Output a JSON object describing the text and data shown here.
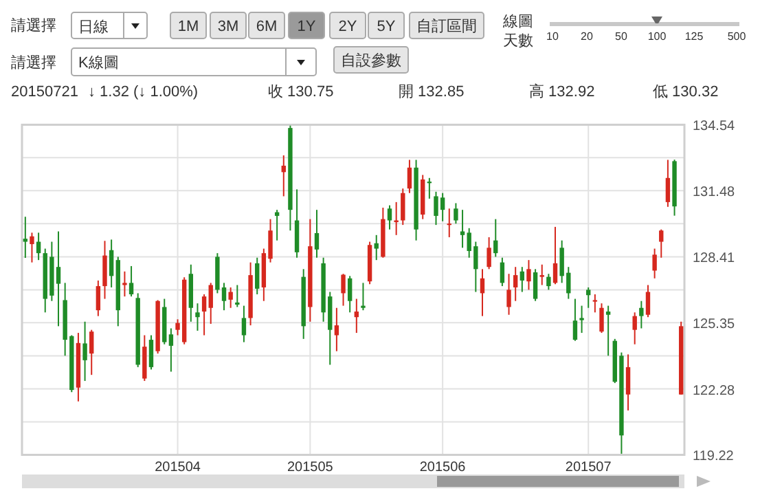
{
  "chart_data": {
    "type": "candlestick",
    "annotations": [
      "請選擇",
      "日線",
      "1M",
      "3M",
      "6M",
      "1Y",
      "2Y",
      "5Y",
      "自訂區間",
      "線圖",
      "天數",
      "10",
      "20",
      "50",
      "100",
      "125",
      "500",
      "請選擇",
      "K線圖",
      "自設參數",
      "20150721",
      "↓ 1.32 (↓ 1.00%)",
      "收 130.75",
      "開 132.85",
      "高 132.92",
      "低 130.32"
    ],
    "categories": [
      null,
      null,
      null,
      null,
      null,
      null,
      null,
      null,
      null,
      null,
      null,
      null,
      null,
      null,
      null,
      null,
      null,
      null,
      null,
      null,
      null,
      null,
      null,
      "201504",
      null,
      null,
      null,
      null,
      null,
      null,
      null,
      null,
      null,
      null,
      null,
      null,
      null,
      null,
      null,
      null,
      null,
      null,
      null,
      "201505",
      null,
      null,
      null,
      null,
      null,
      null,
      null,
      null,
      null,
      null,
      null,
      null,
      null,
      null,
      null,
      null,
      null,
      null,
      null,
      "201506",
      null,
      null,
      null,
      null,
      null,
      null,
      null,
      null,
      null,
      null,
      null,
      null,
      null,
      null,
      null,
      null,
      null,
      null,
      null,
      null,
      null,
      "201507",
      null,
      null,
      null,
      null,
      null,
      null,
      null,
      null,
      null,
      null,
      null,
      null,
      null,
      null
    ],
    "ohlc": [
      [
        129.25,
        130.27,
        128.36,
        129.11
      ],
      [
        129.0,
        129.53,
        128.15,
        129.36
      ],
      [
        129.11,
        129.53,
        128.26,
        128.58
      ],
      [
        128.58,
        128.79,
        125.83,
        126.46
      ],
      [
        128.41,
        129.11,
        126.36,
        126.61
      ],
      [
        127.94,
        129.59,
        125.19,
        127.16
      ],
      [
        126.4,
        127.2,
        123.82,
        124.56
      ],
      [
        124.73,
        124.77,
        122.13,
        122.23
      ],
      [
        122.34,
        124.88,
        121.7,
        124.41
      ],
      [
        124.39,
        125.4,
        122.65,
        123.61
      ],
      [
        123.92,
        125.02,
        122.93,
        124.94
      ],
      [
        125.93,
        127.31,
        125.66,
        127.05
      ],
      [
        127.05,
        129.15,
        126.46,
        128.47
      ],
      [
        128.72,
        129.21,
        126.99,
        127.52
      ],
      [
        128.26,
        128.41,
        125.19,
        125.93
      ],
      [
        127.1,
        127.73,
        126.57,
        127.2
      ],
      [
        127.2,
        127.98,
        126.57,
        126.67
      ],
      [
        126.5,
        126.72,
        123.29,
        123.4
      ],
      [
        122.76,
        124.77,
        122.65,
        124.24
      ],
      [
        124.56,
        124.77,
        123.18,
        123.29
      ],
      [
        124.03,
        126.4,
        123.92,
        126.36
      ],
      [
        126.08,
        126.46,
        124.35,
        124.45
      ],
      [
        124.81,
        125.09,
        123.08,
        124.28
      ],
      [
        125.02,
        125.51,
        124.77,
        125.34
      ],
      [
        124.45,
        127.46,
        124.35,
        127.35
      ],
      [
        127.62,
        128.05,
        125.4,
        126.04
      ],
      [
        125.83,
        126.25,
        124.98,
        125.61
      ],
      [
        125.87,
        126.67,
        124.77,
        126.57
      ],
      [
        126.04,
        127.2,
        125.3,
        127.1
      ],
      [
        128.41,
        128.58,
        126.72,
        126.88
      ],
      [
        126.99,
        127.2,
        125.93,
        126.36
      ],
      [
        126.42,
        126.99,
        126.04,
        126.78
      ],
      [
        126.29,
        127.1,
        126.08,
        126.19
      ],
      [
        125.57,
        126.14,
        124.45,
        124.77
      ],
      [
        125.57,
        128.15,
        125.23,
        127.56
      ],
      [
        128.11,
        128.37,
        126.67,
        126.93
      ],
      [
        126.99,
        128.79,
        126.36,
        128.58
      ],
      [
        128.32,
        130.16,
        128.15,
        129.63
      ],
      [
        130.48,
        130.59,
        129.17,
        130.31
      ],
      [
        132.34,
        133.12,
        131.22,
        132.64
      ],
      [
        134.39,
        134.5,
        129.63,
        130.59
      ],
      [
        130.1,
        131.54,
        128.37,
        128.62
      ],
      [
        127.48,
        127.84,
        124.6,
        125.19
      ],
      [
        126.08,
        130.16,
        125.4,
        128.9
      ],
      [
        129.51,
        130.59,
        128.37,
        128.75
      ],
      [
        128.11,
        128.37,
        125.4,
        125.83
      ],
      [
        126.57,
        126.78,
        123.4,
        125.02
      ],
      [
        124.77,
        126.04,
        124.03,
        125.23
      ],
      [
        126.72,
        127.62,
        126.14,
        127.58
      ],
      [
        127.41,
        127.52,
        125.83,
        126.36
      ],
      [
        125.61,
        126.46,
        124.88,
        125.87
      ],
      [
        126.14,
        127.2,
        125.93,
        126.04
      ],
      [
        127.27,
        129.11,
        127.14,
        128.96
      ],
      [
        129.04,
        129.42,
        128.26,
        128.79
      ],
      [
        128.41,
        130.69,
        128.37,
        130.16
      ],
      [
        130.65,
        130.8,
        129.68,
        130.1
      ],
      [
        130.02,
        130.95,
        129.42,
        130.1
      ],
      [
        130.1,
        131.58,
        129.89,
        131.37
      ],
      [
        131.58,
        132.91,
        131.37,
        132.55
      ],
      [
        132.55,
        132.91,
        129.17,
        129.68
      ],
      [
        130.37,
        132.21,
        130.16,
        132.0
      ],
      [
        131.9,
        132.07,
        131.11,
        131.83
      ],
      [
        131.22,
        131.43,
        129.89,
        130.31
      ],
      [
        131.16,
        131.37,
        130.06,
        130.59
      ],
      [
        129.89,
        130.65,
        129.32,
        129.95
      ],
      [
        130.65,
        130.9,
        129.95,
        130.1
      ],
      [
        129.59,
        130.59,
        128.83,
        129.42
      ],
      [
        129.53,
        129.74,
        128.37,
        128.68
      ],
      [
        128.9,
        129.11,
        126.78,
        127.84
      ],
      [
        126.72,
        127.84,
        125.66,
        127.41
      ],
      [
        127.94,
        129.32,
        127.84,
        128.83
      ],
      [
        129.17,
        130.16,
        128.41,
        128.58
      ],
      [
        128.15,
        128.37,
        127.05,
        127.2
      ],
      [
        126.08,
        127.62,
        125.72,
        126.88
      ],
      [
        126.99,
        127.94,
        126.36,
        127.56
      ],
      [
        127.73,
        127.94,
        126.78,
        127.31
      ],
      [
        127.27,
        128.26,
        126.88,
        127.84
      ],
      [
        127.69,
        127.84,
        126.36,
        126.46
      ],
      [
        127.48,
        128.05,
        127.1,
        127.56
      ],
      [
        127.48,
        127.62,
        126.88,
        127.05
      ],
      [
        127.2,
        129.8,
        127.14,
        128.11
      ],
      [
        128.83,
        129.17,
        127.2,
        127.52
      ],
      [
        127.67,
        127.94,
        126.46,
        126.72
      ],
      [
        125.45,
        126.46,
        124.51,
        124.56
      ],
      [
        125.57,
        126.14,
        124.88,
        125.47
      ],
      [
        126.88,
        126.99,
        126.04,
        126.63
      ],
      [
        126.33,
        126.67,
        125.83,
        126.4
      ],
      [
        124.94,
        126.25,
        124.88,
        126.04
      ],
      [
        125.87,
        126.14,
        123.82,
        125.72
      ],
      [
        124.51,
        124.6,
        122.55,
        122.61
      ],
      [
        123.82,
        123.97,
        119.27,
        120.12
      ],
      [
        122.02,
        123.88,
        121.28,
        123.29
      ],
      [
        125.02,
        125.83,
        124.35,
        125.66
      ],
      [
        126.04,
        126.36,
        125.09,
        125.66
      ],
      [
        125.72,
        127.1,
        125.61,
        126.78
      ],
      [
        127.77,
        128.79,
        127.41,
        128.51
      ],
      [
        129.11,
        129.68,
        128.37,
        129.63
      ],
      [
        130.95,
        132.91,
        130.73,
        132.07
      ],
      [
        132.85,
        132.92,
        130.32,
        130.75
      ],
      [
        122.02,
        125.4,
        122.02,
        125.19
      ]
    ],
    "colors": [
      "#1f8c27",
      "#d6281e",
      "#1f8c27",
      "#1f8c27",
      "#1f8c27",
      "#1f8c27",
      "#1f8c27",
      "#1f8c27",
      "#d6281e",
      "#1f8c27",
      "#d6281e",
      "#d6281e",
      "#d6281e",
      "#1f8c27",
      "#1f8c27",
      "#d6281e",
      "#1f8c27",
      "#1f8c27",
      "#d6281e",
      "#1f8c27",
      "#d6281e",
      "#1f8c27",
      "#1f8c27",
      "#d6281e",
      "#d6281e",
      "#1f8c27",
      "#1f8c27",
      "#d6281e",
      "#d6281e",
      "#1f8c27",
      "#1f8c27",
      "#d6281e",
      "#1f8c27",
      "#1f8c27",
      "#d6281e",
      "#1f8c27",
      "#d6281e",
      "#d6281e",
      "#1f8c27",
      "#d6281e",
      "#1f8c27",
      "#1f8c27",
      "#1f8c27",
      "#d6281e",
      "#1f8c27",
      "#1f8c27",
      "#1f8c27",
      "#d6281e",
      "#d6281e",
      "#1f8c27",
      "#d6281e",
      "#1f8c27",
      "#d6281e",
      "#1f8c27",
      "#d6281e",
      "#1f8c27",
      "#d6281e",
      "#d6281e",
      "#d6281e",
      "#1f8c27",
      "#d6281e",
      "#1f8c27",
      "#1f8c27",
      "#1f8c27",
      "#d6281e",
      "#1f8c27",
      "#1f8c27",
      "#1f8c27",
      "#1f8c27",
      "#d6281e",
      "#d6281e",
      "#1f8c27",
      "#1f8c27",
      "#d6281e",
      "#d6281e",
      "#1f8c27",
      "#d6281e",
      "#1f8c27",
      "#d6281e",
      "#1f8c27",
      "#d6281e",
      "#1f8c27",
      "#1f8c27",
      "#1f8c27",
      "#1f8c27",
      "#1f8c27",
      "#d6281e",
      "#d6281e",
      "#1f8c27",
      "#1f8c27",
      "#1f8c27",
      "#d6281e",
      "#d6281e",
      "#1f8c27",
      "#d6281e",
      "#d6281e",
      "#d6281e",
      "#d6281e",
      "#1f8c27",
      "#d6281e"
    ],
    "ylim": [
      119.22,
      134.54
    ],
    "yticks": [
      119.22,
      {
        "value": 120.75,
        "label": null
      },
      122.28,
      {
        "value": 123.81,
        "label": null
      },
      125.35,
      {
        "value": 126.88,
        "label": null
      },
      128.41,
      {
        "value": 129.95,
        "label": null
      },
      131.48,
      {
        "value": 133.01,
        "label": null
      },
      134.54
    ],
    "grid": true
  }
}
